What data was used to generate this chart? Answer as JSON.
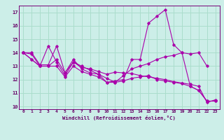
{
  "xlabel": "Windchill (Refroidissement éolien,°C)",
  "ylabel": "",
  "background_color": "#cceee8",
  "grid_color": "#aaddcc",
  "line_color": "#aa00aa",
  "xlim": [
    -0.5,
    23.5
  ],
  "ylim": [
    9.8,
    17.5
  ],
  "yticks": [
    10,
    11,
    12,
    13,
    14,
    15,
    16,
    17
  ],
  "xticks": [
    0,
    1,
    2,
    3,
    4,
    5,
    6,
    7,
    8,
    9,
    10,
    11,
    12,
    13,
    14,
    15,
    16,
    17,
    18,
    19,
    20,
    21,
    22,
    23
  ],
  "series": [
    [
      14.0,
      13.9,
      13.0,
      14.5,
      13.3,
      12.3,
      13.3,
      12.9,
      12.8,
      12.6,
      12.4,
      12.55,
      12.5,
      12.45,
      12.3,
      12.2,
      12.1,
      12.0,
      11.85,
      11.75,
      11.65,
      11.5,
      10.3,
      10.5
    ],
    [
      14.0,
      13.5,
      13.0,
      13.0,
      13.5,
      12.5,
      13.3,
      13.0,
      12.7,
      12.4,
      11.8,
      11.9,
      12.0,
      13.5,
      13.5,
      16.2,
      16.7,
      17.2,
      14.6,
      14.0,
      11.5,
      11.2,
      10.4,
      10.4
    ],
    [
      14.0,
      14.0,
      13.1,
      13.1,
      14.5,
      12.5,
      13.5,
      12.8,
      12.5,
      12.4,
      12.1,
      11.8,
      12.3,
      12.8,
      13.0,
      13.2,
      13.5,
      13.7,
      13.8,
      14.0,
      13.9,
      14.0,
      13.0,
      null
    ],
    [
      14.0,
      13.5,
      13.0,
      13.0,
      13.0,
      12.2,
      13.0,
      12.6,
      12.4,
      12.2,
      11.8,
      11.8,
      11.9,
      12.1,
      12.2,
      12.3,
      12.0,
      11.9,
      11.8,
      11.7,
      11.5,
      11.2,
      10.4,
      10.4
    ]
  ]
}
